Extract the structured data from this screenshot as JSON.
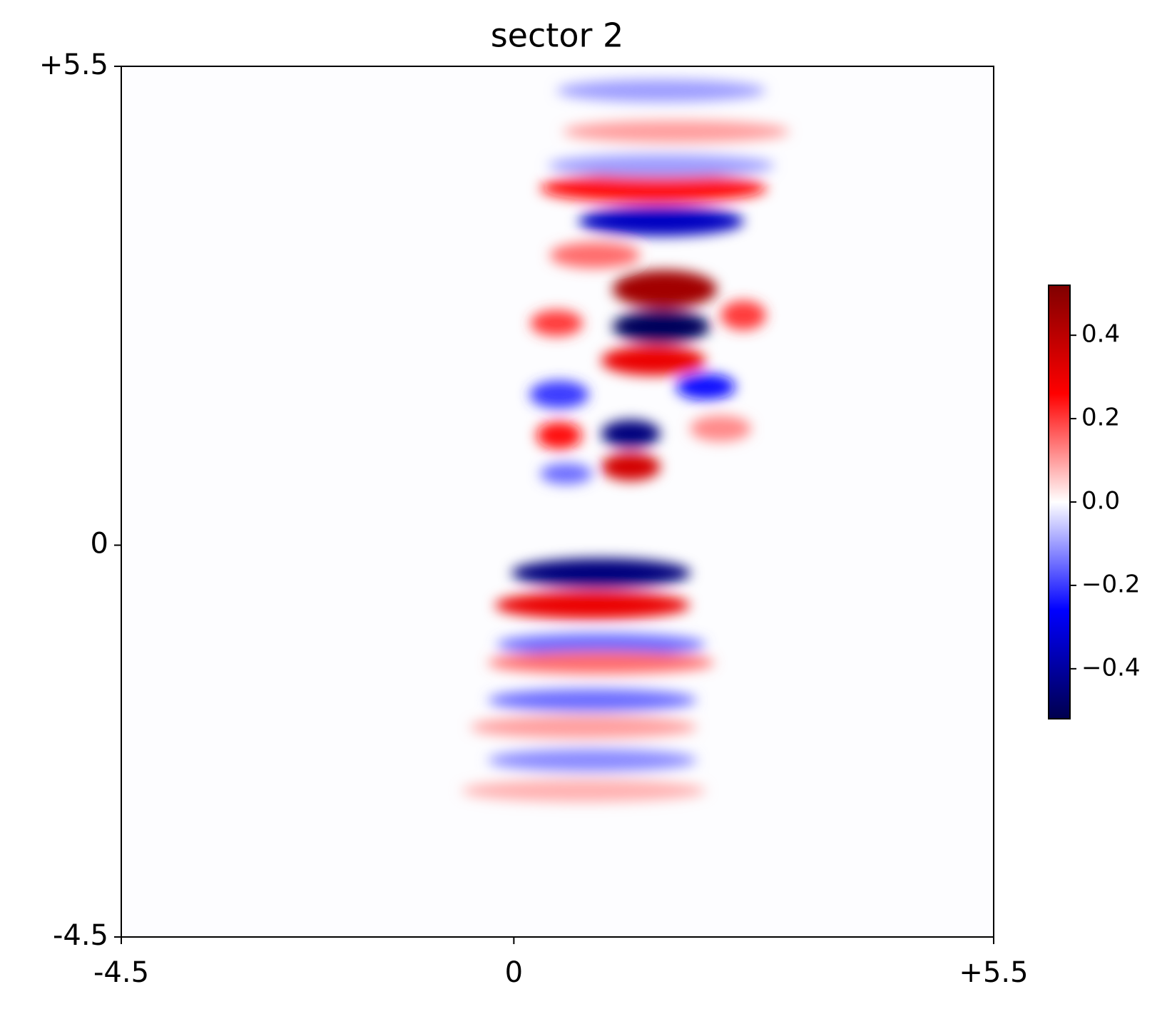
{
  "chart_data": {
    "type": "heatmap",
    "title": "sector 2",
    "xlim": [
      -4.5,
      5.5
    ],
    "ylim": [
      -4.5,
      5.5
    ],
    "xticks": [
      -4.5,
      0,
      {
        "value": 5.5,
        "label": "+5.5"
      }
    ],
    "yticks": [
      -4.5,
      0,
      {
        "value": 5.5,
        "label": "+5.5"
      }
    ],
    "colormap": "seismic",
    "clim": [
      -0.52,
      0.52
    ],
    "cticks": [
      {
        "value": -0.4,
        "label": "−0.4"
      },
      {
        "value": -0.2,
        "label": "−0.2"
      },
      {
        "value": 0,
        "label": "0.0"
      },
      0.2,
      0.4
    ],
    "blobs": [
      {
        "x": 1.73,
        "y": 2.94,
        "rx": 0.6,
        "ry": 0.22,
        "value": 0.45
      },
      {
        "x": 1.69,
        "y": 2.51,
        "rx": 0.56,
        "ry": 0.19,
        "value": -0.5
      },
      {
        "x": 1.6,
        "y": 2.12,
        "rx": 0.6,
        "ry": 0.17,
        "value": 0.3
      },
      {
        "x": 1.34,
        "y": 1.28,
        "rx": 0.34,
        "ry": 0.16,
        "value": -0.45
      },
      {
        "x": 1.34,
        "y": 0.9,
        "rx": 0.34,
        "ry": 0.16,
        "value": 0.35
      },
      {
        "x": 0.52,
        "y": 1.26,
        "rx": 0.26,
        "ry": 0.16,
        "value": 0.25
      },
      {
        "x": 0.52,
        "y": 1.73,
        "rx": 0.34,
        "ry": 0.16,
        "value": -0.2
      },
      {
        "x": 0.6,
        "y": 0.82,
        "rx": 0.3,
        "ry": 0.12,
        "value": -0.15
      },
      {
        "x": 1.0,
        "y": -0.32,
        "rx": 1.03,
        "ry": 0.17,
        "value": -0.45
      },
      {
        "x": 0.9,
        "y": -0.69,
        "rx": 1.12,
        "ry": 0.16,
        "value": 0.3
      },
      {
        "x": 1.0,
        "y": -1.14,
        "rx": 1.2,
        "ry": 0.13,
        "value": -0.15
      },
      {
        "x": 1.0,
        "y": -1.35,
        "rx": 1.3,
        "ry": 0.13,
        "value": 0.15
      },
      {
        "x": 0.9,
        "y": -1.78,
        "rx": 1.2,
        "ry": 0.13,
        "value": -0.15
      },
      {
        "x": 0.8,
        "y": -2.09,
        "rx": 1.3,
        "ry": 0.13,
        "value": 0.1
      },
      {
        "x": 0.9,
        "y": -2.47,
        "rx": 1.2,
        "ry": 0.13,
        "value": -0.12
      },
      {
        "x": 0.8,
        "y": -2.82,
        "rx": 1.4,
        "ry": 0.13,
        "value": 0.08
      },
      {
        "x": 1.6,
        "y": 4.1,
        "rx": 1.3,
        "ry": 0.17,
        "value": 0.25
      },
      {
        "x": 1.69,
        "y": 3.72,
        "rx": 0.95,
        "ry": 0.17,
        "value": -0.35
      },
      {
        "x": 1.69,
        "y": 4.36,
        "rx": 1.3,
        "ry": 0.13,
        "value": -0.1
      },
      {
        "x": 1.86,
        "y": 4.75,
        "rx": 1.3,
        "ry": 0.13,
        "value": 0.1
      },
      {
        "x": 1.69,
        "y": 5.22,
        "rx": 1.2,
        "ry": 0.13,
        "value": -0.1
      },
      {
        "x": 0.93,
        "y": 3.33,
        "rx": 0.52,
        "ry": 0.15,
        "value": 0.15
      },
      {
        "x": 2.63,
        "y": 2.64,
        "rx": 0.26,
        "ry": 0.17,
        "value": 0.2
      },
      {
        "x": 2.37,
        "y": 1.34,
        "rx": 0.35,
        "ry": 0.15,
        "value": 0.12
      },
      {
        "x": 2.2,
        "y": 1.82,
        "rx": 0.34,
        "ry": 0.15,
        "value": -0.25
      },
      {
        "x": 0.49,
        "y": 2.55,
        "rx": 0.3,
        "ry": 0.15,
        "value": 0.2
      }
    ]
  }
}
